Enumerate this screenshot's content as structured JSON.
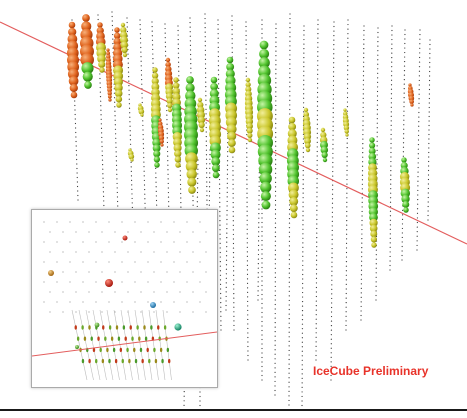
{
  "watermark": "IceCube Preliminary",
  "colors": {
    "track_line": "#e35d5d",
    "string_dots": "#333333",
    "hit_early": "#e05a1e",
    "hit_mid": "#c9c62a",
    "hit_late": "#4fc22c",
    "inset_hit_red": "#d42a1a",
    "inset_hit_blue": "#2a8fc9",
    "inset_hit_teal": "#1fb88a",
    "inset_hit_orange": "#d98c1a"
  },
  "icons": [
    "event-display",
    "track-line",
    "dom-strings",
    "inset-overview"
  ]
}
